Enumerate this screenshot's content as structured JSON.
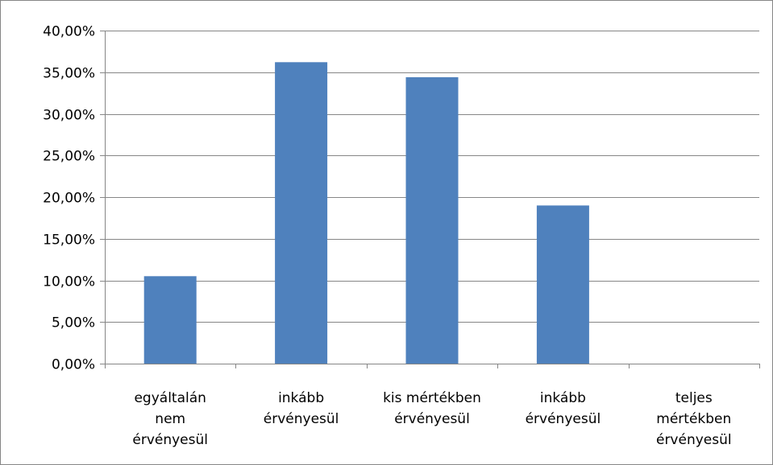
{
  "chart_data": {
    "type": "bar",
    "title": "",
    "xlabel": "",
    "ylabel": "",
    "categories": [
      [
        "egyáltalán",
        "nem",
        "érvényesül"
      ],
      [
        "inkább",
        "érvényesül"
      ],
      [
        "kis mértékben",
        "érvényesül"
      ],
      [
        "inkább",
        "érvényesül"
      ],
      [
        "teljes",
        "mértékben",
        "érvényesül"
      ]
    ],
    "values": [
      10.5,
      36.2,
      34.4,
      19.0,
      0.0
    ],
    "ylim": [
      0,
      40
    ],
    "yticks": [
      0,
      5,
      10,
      15,
      20,
      25,
      30,
      35,
      40
    ],
    "ytick_labels": [
      "0,00%",
      "5,00%",
      "10,00%",
      "15,00%",
      "20,00%",
      "25,00%",
      "30,00%",
      "35,00%",
      "40,00%"
    ],
    "grid": true,
    "legend": "none",
    "colors": {
      "bar": "#4f81bd",
      "grid": "#868686",
      "axis": "#868686"
    }
  }
}
